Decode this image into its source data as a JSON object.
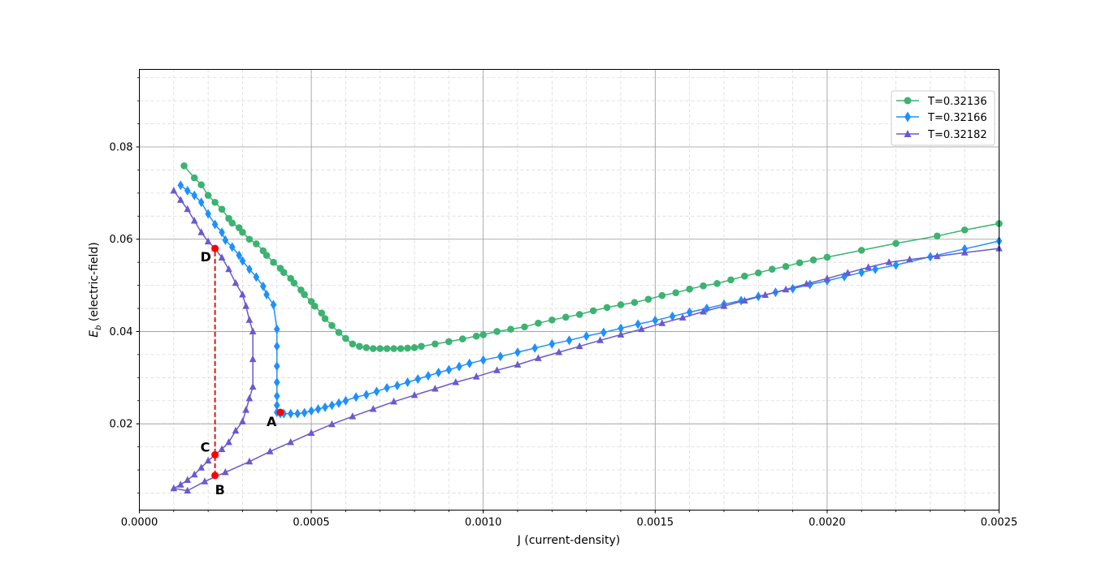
{
  "chart_data": {
    "type": "line",
    "xlabel": "J (current-density)",
    "ylabel_main": "E",
    "ylabel_sub": "b",
    "ylabel_rest": " (electric-field)",
    "xlim": [
      0.0,
      0.0025
    ],
    "ylim": [
      0.0013,
      0.0968
    ],
    "x_ticks": [
      0.0,
      0.0005,
      0.001,
      0.0015,
      0.002,
      0.0025
    ],
    "x_tick_labels": [
      "0.0000",
      "0.0005",
      "0.0010",
      "0.0015",
      "0.0020",
      "0.0025"
    ],
    "y_ticks": [
      0.02,
      0.04,
      0.06,
      0.08
    ],
    "y_tick_labels": [
      "0.02",
      "0.04",
      "0.06",
      "0.08"
    ],
    "grid": true,
    "legend_position": "top-right",
    "series": [
      {
        "name": "T=0.32136",
        "color": "#3cb371",
        "marker": "circle",
        "x": [
          0.00013,
          0.00016,
          0.00018,
          0.0002,
          0.00022,
          0.00024,
          0.00026,
          0.00027,
          0.00029,
          0.0003,
          0.00032,
          0.00034,
          0.00036,
          0.00037,
          0.00039,
          0.00041,
          0.00042,
          0.00044,
          0.00045,
          0.00047,
          0.00048,
          0.0005,
          0.00051,
          0.00053,
          0.00054,
          0.00056,
          0.00058,
          0.0006,
          0.00062,
          0.00064,
          0.00066,
          0.00068,
          0.0007,
          0.00072,
          0.00074,
          0.00076,
          0.00078,
          0.0008,
          0.00082,
          0.00086,
          0.0009,
          0.00094,
          0.00098,
          0.001,
          0.00104,
          0.00108,
          0.00112,
          0.00116,
          0.0012,
          0.00124,
          0.00128,
          0.00132,
          0.00136,
          0.0014,
          0.00144,
          0.00148,
          0.00152,
          0.00156,
          0.0016,
          0.00164,
          0.00168,
          0.00172,
          0.00176,
          0.0018,
          0.00184,
          0.00188,
          0.00192,
          0.00196,
          0.002,
          0.0021,
          0.0022,
          0.00232,
          0.0024,
          0.0025
        ],
        "y": [
          0.0759,
          0.0733,
          0.0718,
          0.0695,
          0.068,
          0.0665,
          0.0645,
          0.0635,
          0.0625,
          0.0615,
          0.06,
          0.059,
          0.0575,
          0.0565,
          0.055,
          0.0537,
          0.0528,
          0.0515,
          0.0505,
          0.049,
          0.048,
          0.0465,
          0.0455,
          0.044,
          0.0428,
          0.0413,
          0.0398,
          0.0385,
          0.0373,
          0.0368,
          0.0365,
          0.0363,
          0.0363,
          0.0363,
          0.0363,
          0.0363,
          0.0364,
          0.0365,
          0.0368,
          0.0373,
          0.0378,
          0.0384,
          0.039,
          0.0393,
          0.04,
          0.0405,
          0.041,
          0.0418,
          0.0425,
          0.0431,
          0.0437,
          0.0445,
          0.0452,
          0.0458,
          0.0463,
          0.047,
          0.0478,
          0.0484,
          0.0492,
          0.0499,
          0.0504,
          0.0512,
          0.052,
          0.0527,
          0.0535,
          0.0541,
          0.0549,
          0.0555,
          0.0561,
          0.0576,
          0.0591,
          0.0607,
          0.062,
          0.0634
        ]
      },
      {
        "name": "T=0.32166",
        "color": "#1e90ff",
        "marker": "diamond",
        "x": [
          0.00012,
          0.00014,
          0.00016,
          0.00018,
          0.0002,
          0.00022,
          0.00024,
          0.00025,
          0.00027,
          0.00029,
          0.0003,
          0.00032,
          0.00034,
          0.00036,
          0.00037,
          0.00039,
          0.0004,
          0.0004,
          0.0004,
          0.0004,
          0.0004,
          0.0004,
          0.0004,
          0.00041,
          0.00042,
          0.00044,
          0.00046,
          0.00048,
          0.0005,
          0.00052,
          0.00054,
          0.00056,
          0.00058,
          0.0006,
          0.00063,
          0.00066,
          0.00069,
          0.00072,
          0.00075,
          0.00078,
          0.00081,
          0.00084,
          0.00087,
          0.0009,
          0.00093,
          0.00096,
          0.001,
          0.00105,
          0.0011,
          0.00115,
          0.0012,
          0.00125,
          0.0013,
          0.00135,
          0.0014,
          0.00145,
          0.0015,
          0.00155,
          0.0016,
          0.00165,
          0.0017,
          0.00175,
          0.0018,
          0.00185,
          0.0019,
          0.00195,
          0.002,
          0.00205,
          0.0021,
          0.00214,
          0.0022,
          0.0023,
          0.0024,
          0.0025
        ],
        "y": [
          0.0717,
          0.0705,
          0.0695,
          0.068,
          0.0655,
          0.0632,
          0.0615,
          0.0598,
          0.0583,
          0.0565,
          0.0553,
          0.0535,
          0.0518,
          0.0498,
          0.048,
          0.0458,
          0.0405,
          0.0368,
          0.0325,
          0.029,
          0.026,
          0.024,
          0.0225,
          0.0222,
          0.0222,
          0.0222,
          0.0222,
          0.0224,
          0.0228,
          0.0232,
          0.0236,
          0.024,
          0.0245,
          0.025,
          0.0258,
          0.0263,
          0.027,
          0.0278,
          0.0283,
          0.029,
          0.0297,
          0.0304,
          0.0311,
          0.0317,
          0.0324,
          0.0331,
          0.0338,
          0.0346,
          0.0355,
          0.0364,
          0.0373,
          0.0381,
          0.039,
          0.0398,
          0.0407,
          0.0416,
          0.0424,
          0.0433,
          0.0442,
          0.045,
          0.0459,
          0.0467,
          0.0476,
          0.0485,
          0.0493,
          0.0502,
          0.051,
          0.0519,
          0.0528,
          0.0535,
          0.0544,
          0.0562,
          0.0579,
          0.0596
        ]
      },
      {
        "name": "T=0.32182",
        "color": "#6a5acd",
        "marker": "triangle",
        "x": [
          0.0001,
          0.00012,
          0.00014,
          0.00016,
          0.00018,
          0.0002,
          0.00022,
          0.00024,
          0.00026,
          0.00028,
          0.0003,
          0.00031,
          0.00032,
          0.00033,
          0.00033,
          0.00033,
          0.00032,
          0.00031,
          0.0003,
          0.00028,
          0.00026,
          0.00024,
          0.00022,
          0.0002,
          0.00018,
          0.00016,
          0.00014,
          0.00012,
          0.0001,
          0.00014,
          0.00019,
          0.00025,
          0.00032,
          0.00038,
          0.00044,
          0.0005,
          0.00056,
          0.00062,
          0.00068,
          0.00074,
          0.0008,
          0.00086,
          0.00092,
          0.00098,
          0.00104,
          0.0011,
          0.00116,
          0.00122,
          0.00128,
          0.00134,
          0.0014,
          0.00146,
          0.00152,
          0.00158,
          0.00164,
          0.0017,
          0.00176,
          0.00182,
          0.00188,
          0.00194,
          0.002,
          0.00206,
          0.00212,
          0.00218,
          0.00224,
          0.00232,
          0.0024,
          0.0025
        ],
        "y": [
          0.0705,
          0.0685,
          0.0665,
          0.064,
          0.0615,
          0.0595,
          0.058,
          0.056,
          0.0535,
          0.0505,
          0.048,
          0.0455,
          0.0425,
          0.04,
          0.034,
          0.028,
          0.0255,
          0.023,
          0.0205,
          0.0185,
          0.016,
          0.0145,
          0.0133,
          0.012,
          0.0105,
          0.009,
          0.0078,
          0.0068,
          0.006,
          0.0055,
          0.0075,
          0.0095,
          0.0118,
          0.014,
          0.016,
          0.018,
          0.0199,
          0.0216,
          0.0232,
          0.0248,
          0.0262,
          0.0276,
          0.029,
          0.0302,
          0.0316,
          0.0328,
          0.0342,
          0.0355,
          0.0368,
          0.0381,
          0.0393,
          0.0405,
          0.0418,
          0.043,
          0.0443,
          0.0455,
          0.0467,
          0.0479,
          0.0491,
          0.0503,
          0.0515,
          0.0527,
          0.0539,
          0.055,
          0.0556,
          0.0563,
          0.0571,
          0.058
        ]
      }
    ],
    "annotations": {
      "dashed_line": {
        "x": 0.00022,
        "y_from": 0.0088,
        "y_to": 0.058,
        "color": "#dd0000"
      },
      "points": [
        {
          "label": "A",
          "x": 0.00041,
          "y": 0.0225
        },
        {
          "label": "B",
          "x": 0.00022,
          "y": 0.0088
        },
        {
          "label": "C",
          "x": 0.00022,
          "y": 0.0133
        },
        {
          "label": "D",
          "x": 0.00022,
          "y": 0.058
        }
      ],
      "point_color": "#ff0000"
    }
  }
}
